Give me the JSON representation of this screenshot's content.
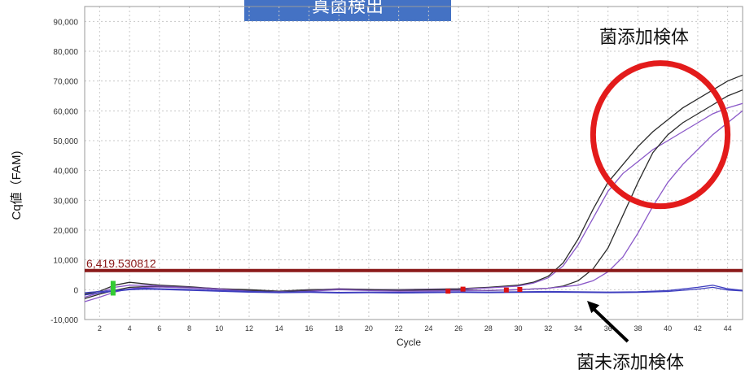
{
  "banner": {
    "text": "真菌検出"
  },
  "annotations": {
    "spiked": "菌添加検体",
    "unspiked": "菌未添加検体"
  },
  "colors": {
    "threshold": "#8b1a1a",
    "highlight_circle": "#e31b1b",
    "series_dark": "#2b2b2b",
    "series_purple": "#8a58c8",
    "series_flat": "#3f3fbf",
    "grid": "#c8c8c8",
    "banner": "#4472c4"
  },
  "chart_data": {
    "type": "line",
    "title": "",
    "xlabel": "Cycle",
    "ylabel": "Cq値（FAM)",
    "xlim": [
      1,
      45
    ],
    "ylim": [
      -10000,
      95000
    ],
    "x_ticks": [
      2,
      4,
      6,
      8,
      10,
      12,
      14,
      16,
      18,
      20,
      22,
      24,
      26,
      28,
      30,
      32,
      34,
      36,
      38,
      40,
      42,
      44
    ],
    "y_ticks": [
      -10000,
      0,
      10000,
      20000,
      30000,
      40000,
      50000,
      60000,
      70000,
      80000,
      90000
    ],
    "y_tick_labels": [
      "-10,000",
      "0",
      "10,000",
      "20,000",
      "30,000",
      "40,000",
      "50,000",
      "60,000",
      "70,000",
      "80,000",
      "90,000"
    ],
    "grid": true,
    "threshold": {
      "value": 6419.530812,
      "label": "6,419.530812"
    },
    "series": [
      {
        "color": "dark",
        "x": [
          1,
          2,
          3,
          4,
          5,
          6,
          8,
          10,
          12,
          14,
          16,
          18,
          20,
          22,
          24,
          26,
          28,
          30,
          31,
          32,
          33,
          34,
          35,
          36,
          37,
          38,
          39,
          40,
          41,
          42,
          43,
          44,
          45
        ],
        "y": [
          -1500,
          -500,
          1500,
          2500,
          2000,
          1500,
          1000,
          300,
          0,
          -500,
          0,
          200,
          100,
          0,
          200,
          300,
          800,
          1500,
          2500,
          4500,
          9000,
          17000,
          27000,
          36000,
          42000,
          48000,
          53000,
          57000,
          61000,
          64000,
          67000,
          70000,
          72000
        ]
      },
      {
        "color": "purple",
        "x": [
          1,
          2,
          3,
          4,
          5,
          6,
          8,
          10,
          12,
          14,
          16,
          18,
          20,
          22,
          24,
          26,
          28,
          30,
          31,
          32,
          33,
          34,
          35,
          36,
          37,
          38,
          39,
          40,
          41,
          42,
          43,
          44,
          45
        ],
        "y": [
          -2500,
          -1000,
          800,
          1500,
          1500,
          1200,
          800,
          300,
          -300,
          -700,
          -200,
          300,
          100,
          -100,
          100,
          200,
          600,
          1200,
          2200,
          4000,
          8000,
          15000,
          24000,
          33000,
          39000,
          43000,
          47000,
          50000,
          53000,
          56000,
          59000,
          61000,
          62500
        ]
      },
      {
        "color": "dark",
        "x": [
          1,
          2,
          3,
          4,
          5,
          6,
          8,
          10,
          12,
          14,
          16,
          18,
          20,
          22,
          24,
          26,
          28,
          30,
          32,
          33,
          34,
          35,
          36,
          37,
          38,
          39,
          40,
          41,
          42,
          43,
          44,
          45
        ],
        "y": [
          -3000,
          -1500,
          -200,
          800,
          1000,
          1000,
          700,
          200,
          -300,
          -800,
          -300,
          200,
          0,
          -200,
          -100,
          0,
          -300,
          0,
          500,
          1200,
          3000,
          7000,
          14000,
          25000,
          36000,
          46000,
          52000,
          56000,
          59000,
          62000,
          65000,
          67000
        ]
      },
      {
        "color": "purple",
        "x": [
          1,
          2,
          3,
          4,
          5,
          6,
          8,
          10,
          12,
          14,
          16,
          18,
          20,
          22,
          24,
          26,
          28,
          30,
          32,
          34,
          35,
          36,
          37,
          38,
          39,
          40,
          41,
          42,
          43,
          44,
          45
        ],
        "y": [
          -4000,
          -2500,
          -800,
          300,
          800,
          900,
          600,
          100,
          -500,
          -1000,
          -500,
          0,
          -300,
          -500,
          -400,
          -300,
          -200,
          0,
          500,
          1500,
          3000,
          6000,
          11000,
          19000,
          28000,
          36000,
          42000,
          47000,
          52000,
          56000,
          60000
        ]
      },
      {
        "color": "flat",
        "x": [
          1,
          2,
          3,
          4,
          5,
          6,
          8,
          10,
          12,
          14,
          16,
          18,
          20,
          22,
          24,
          26,
          28,
          30,
          32,
          34,
          36,
          38,
          40,
          42,
          43,
          44,
          45
        ],
        "y": [
          -1000,
          -600,
          -300,
          200,
          500,
          300,
          100,
          -300,
          -600,
          -800,
          -700,
          -900,
          -800,
          -900,
          -800,
          -700,
          -800,
          -700,
          -600,
          -700,
          -800,
          -700,
          -300,
          800,
          1500,
          300,
          -200
        ]
      },
      {
        "color": "flat",
        "x": [
          1,
          2,
          3,
          4,
          5,
          6,
          8,
          10,
          12,
          14,
          16,
          18,
          20,
          22,
          24,
          26,
          28,
          30,
          32,
          34,
          36,
          38,
          40,
          42,
          43,
          44,
          45
        ],
        "y": [
          -1800,
          -1000,
          -500,
          0,
          200,
          100,
          -200,
          -500,
          -800,
          -1000,
          -900,
          -1100,
          -1000,
          -1100,
          -1000,
          -900,
          -1000,
          -900,
          -800,
          -900,
          -1000,
          -900,
          -600,
          200,
          800,
          -100,
          -400
        ]
      }
    ],
    "markers": [
      {
        "color": "green",
        "x": 2.9,
        "y": 500
      },
      {
        "color": "red",
        "x": 25.3,
        "y": -500
      },
      {
        "color": "red",
        "x": 26.3,
        "y": 200
      },
      {
        "color": "red",
        "x": 29.2,
        "y": -100
      },
      {
        "color": "red",
        "x": 30.1,
        "y": 100
      }
    ],
    "highlight": {
      "kind": "ellipse",
      "cx": 39.5,
      "cy": 52000,
      "rx_cycles": 4.5,
      "ry_value": 24000
    }
  }
}
